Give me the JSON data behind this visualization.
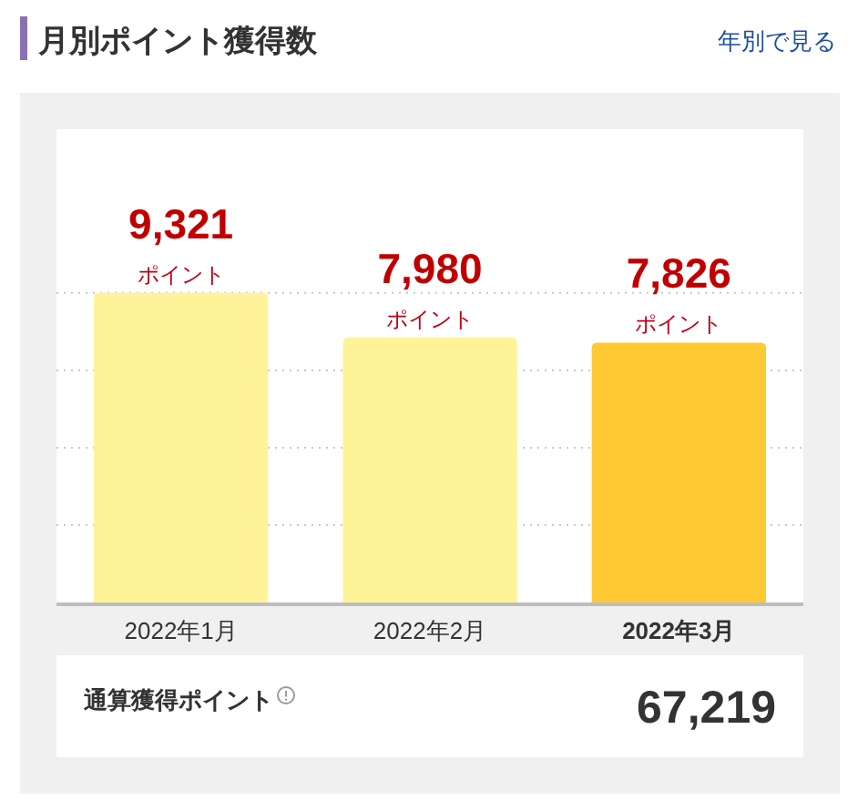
{
  "chart_data": {
    "type": "bar",
    "title": "月別ポイント獲得数",
    "categories": [
      "2022年1月",
      "2022年2月",
      "2022年3月"
    ],
    "values": [
      9321,
      7980,
      7826
    ],
    "colors": [
      "#fff399",
      "#fff399",
      "#ffc933"
    ],
    "value_labels": [
      "9,321\nポイント",
      "7,980\nポイント",
      "7,826\nポイント"
    ],
    "ylim": [
      0,
      14250
    ],
    "yticks": [
      {
        "value": 2330,
        "label": null
      },
      {
        "value": 4660,
        "label": null
      },
      {
        "value": 6990,
        "label": null
      },
      {
        "value": 9321,
        "label": null
      }
    ],
    "grid": "y",
    "tick_labels": "x",
    "annotations": [
      "年別で見る",
      "通算獲得ポイント",
      "67,219"
    ]
  }
}
